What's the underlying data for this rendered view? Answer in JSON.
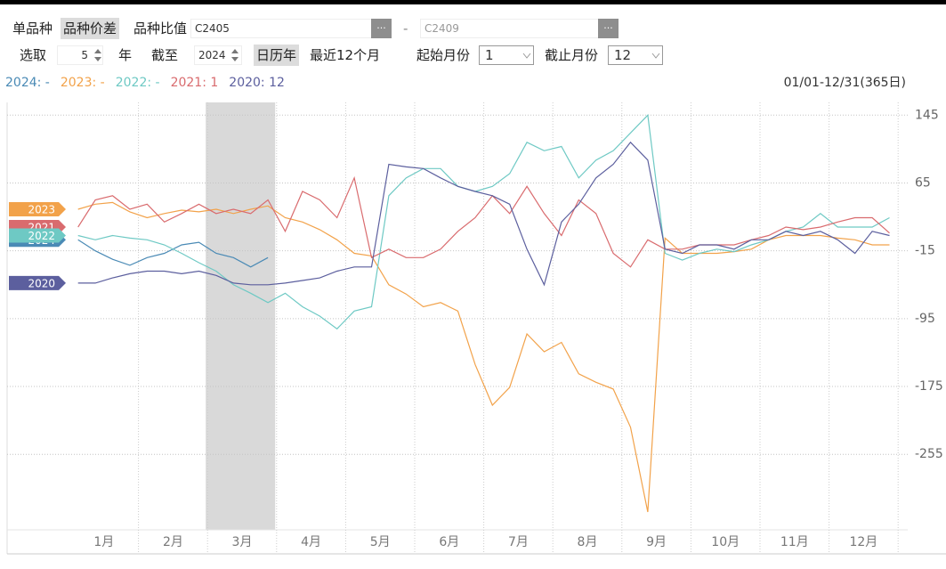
{
  "toolbar": {
    "tabs": [
      "单品种",
      "品种价差",
      "品种比值"
    ],
    "contract1": "C2405",
    "browse1": "...",
    "separator": "-",
    "contract2": "C2409",
    "browse2": "...",
    "select_label": "选取",
    "years": "5",
    "year_unit": "年",
    "until_label": "截至",
    "until_year": "2024",
    "modes": [
      "日历年",
      "最近12个月"
    ],
    "start_month_label": "起始月份",
    "start_month": "1",
    "end_month_label": "截止月份",
    "end_month": "12"
  },
  "chart_data": {
    "type": "line",
    "date_range": "01/01-12/31(365日)",
    "categories": [
      null,
      "1月",
      null,
      null,
      null,
      "2月",
      null,
      null,
      null,
      "3月",
      null,
      null,
      null,
      "4月",
      null,
      null,
      null,
      "5月",
      null,
      null,
      null,
      "6月",
      null,
      null,
      null,
      "7月",
      null,
      null,
      null,
      "8月",
      null,
      null,
      null,
      "9月",
      null,
      null,
      null,
      "10月",
      null,
      null,
      null,
      "11月",
      null,
      null,
      null,
      "12月",
      null,
      null
    ],
    "series": [
      {
        "name": "2024",
        "legend": "2024: -",
        "color": "#4a8ab5",
        "values": [
          -2,
          -15,
          -25,
          -32,
          -23,
          -18,
          -8,
          -5,
          -18,
          -23,
          -34,
          -23,
          null,
          null,
          null,
          null,
          null,
          null,
          null,
          null,
          null,
          null,
          null,
          null,
          null,
          null,
          null,
          null,
          null,
          null,
          null,
          null,
          null,
          null,
          null,
          null,
          null,
          null,
          null,
          null,
          null,
          null,
          null,
          null,
          null,
          null,
          null,
          null
        ]
      },
      {
        "name": "2023",
        "legend": "2023: -",
        "color": "#f2a24a",
        "values": [
          34,
          40,
          42,
          31,
          24,
          29,
          33,
          31,
          34,
          29,
          34,
          38,
          24,
          19,
          10,
          -2,
          -18,
          -21,
          -55,
          -66,
          -81,
          -76,
          -86,
          -149,
          -197,
          -176,
          -113,
          -134,
          -123,
          -160,
          -170,
          -178,
          -223,
          -323,
          0,
          -18,
          -18,
          -18,
          -16,
          -13,
          -2,
          3,
          3,
          3,
          0,
          -2,
          -8,
          -8
        ]
      },
      {
        "name": "2022",
        "legend": "2022: -",
        "color": "#6ec9c4",
        "values": [
          3,
          -2,
          3,
          0,
          -2,
          -8,
          -18,
          -29,
          -39,
          -55,
          -65,
          -76,
          -65,
          -81,
          -92,
          -107,
          -86,
          -81,
          50,
          71,
          82,
          82,
          61,
          55,
          61,
          76,
          113,
          103,
          108,
          71,
          92,
          103,
          124,
          145,
          -18,
          -26,
          -18,
          -13,
          -16,
          -8,
          -2,
          8,
          13,
          29,
          13,
          13,
          13,
          24
        ]
      },
      {
        "name": "2021",
        "legend": "2021: 1",
        "color": "#d96b6e",
        "values": [
          13,
          45,
          50,
          34,
          40,
          19,
          29,
          40,
          29,
          34,
          29,
          45,
          8,
          55,
          45,
          24,
          71,
          -23,
          -13,
          -23,
          -23,
          -13,
          8,
          24,
          50,
          29,
          61,
          29,
          3,
          45,
          29,
          -18,
          -34,
          -2,
          -13,
          -13,
          -8,
          -8,
          -8,
          -2,
          3,
          13,
          10,
          13,
          19,
          24,
          24,
          6
        ]
      },
      {
        "name": "2020",
        "legend": "2020: 12",
        "color": "#5c5f9e",
        "values": [
          -53,
          -53,
          -47,
          -42,
          -39,
          -39,
          -42,
          -39,
          -44,
          -53,
          -55,
          -55,
          -53,
          -50,
          -47,
          -39,
          -34,
          -34,
          87,
          84,
          82,
          71,
          61,
          55,
          50,
          40,
          -13,
          -55,
          19,
          40,
          71,
          87,
          113,
          92,
          -13,
          -18,
          -8,
          -8,
          -13,
          -2,
          -2,
          8,
          3,
          8,
          -2,
          -18,
          8,
          3
        ]
      }
    ],
    "ylim": [
      -344,
      160
    ],
    "yticks": [
      145,
      65,
      -15,
      -95,
      -175,
      -255
    ],
    "grid": true
  }
}
